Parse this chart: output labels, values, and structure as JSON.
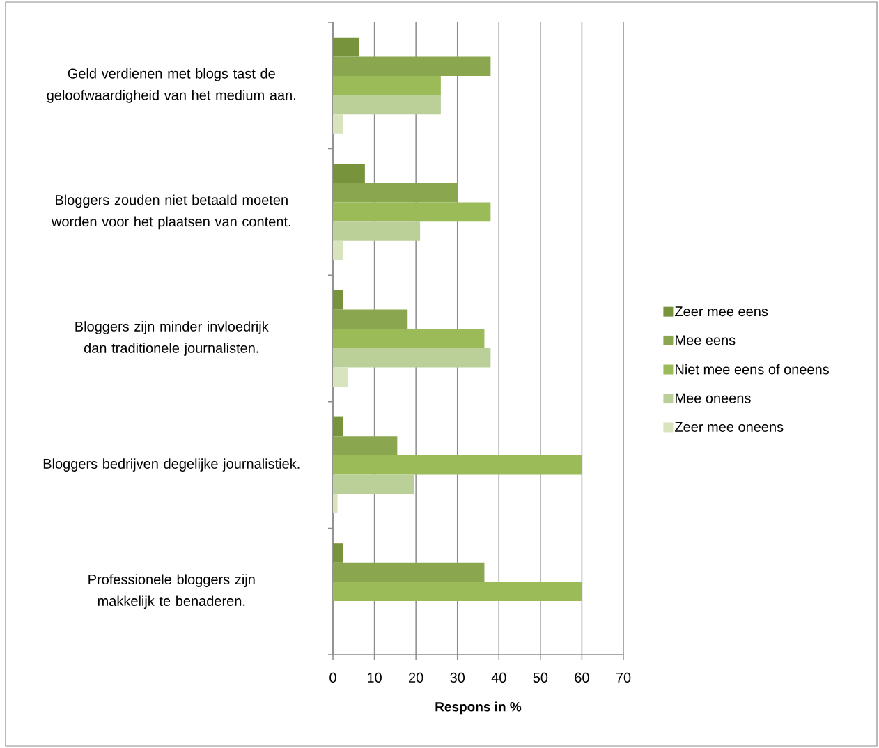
{
  "chart_data": {
    "type": "bar",
    "orientation": "horizontal",
    "categories": [
      "Geld verdienen met blogs tast de geloofwaardigheid van het medium aan.",
      "Bloggers zouden niet betaald moeten worden voor het plaatsen van content.",
      "Bloggers zijn minder invloedrijk dan traditionele journalisten.",
      "Bloggers bedrijven degelijke journalistiek.",
      "Professionele bloggers zijn makkelijk te benaderen."
    ],
    "series": [
      {
        "name": "Zeer mee eens",
        "color": "#77933c",
        "values": [
          6.3,
          7.7,
          2.4,
          2.4,
          2.4
        ]
      },
      {
        "name": "Mee eens",
        "color": "#8aa64f",
        "values": [
          38,
          30,
          18,
          15.5,
          36.5
        ]
      },
      {
        "name": "Niet mee eens of oneens",
        "color": "#9bbb59",
        "values": [
          26,
          38,
          36.5,
          60,
          60
        ]
      },
      {
        "name": "Mee oneens",
        "color": "#bbcf98",
        "values": [
          26,
          21,
          38,
          19.5,
          0
        ]
      },
      {
        "name": "Zeer mee oneens",
        "color": "#d7e4bd",
        "values": [
          2.4,
          2.4,
          3.7,
          1.1,
          0
        ]
      }
    ],
    "xlim": [
      0,
      70
    ],
    "xticks": [
      0,
      10,
      20,
      30,
      40,
      50,
      60,
      70
    ],
    "xlabel": "Respons in %",
    "grid": "x",
    "legend": "right"
  }
}
